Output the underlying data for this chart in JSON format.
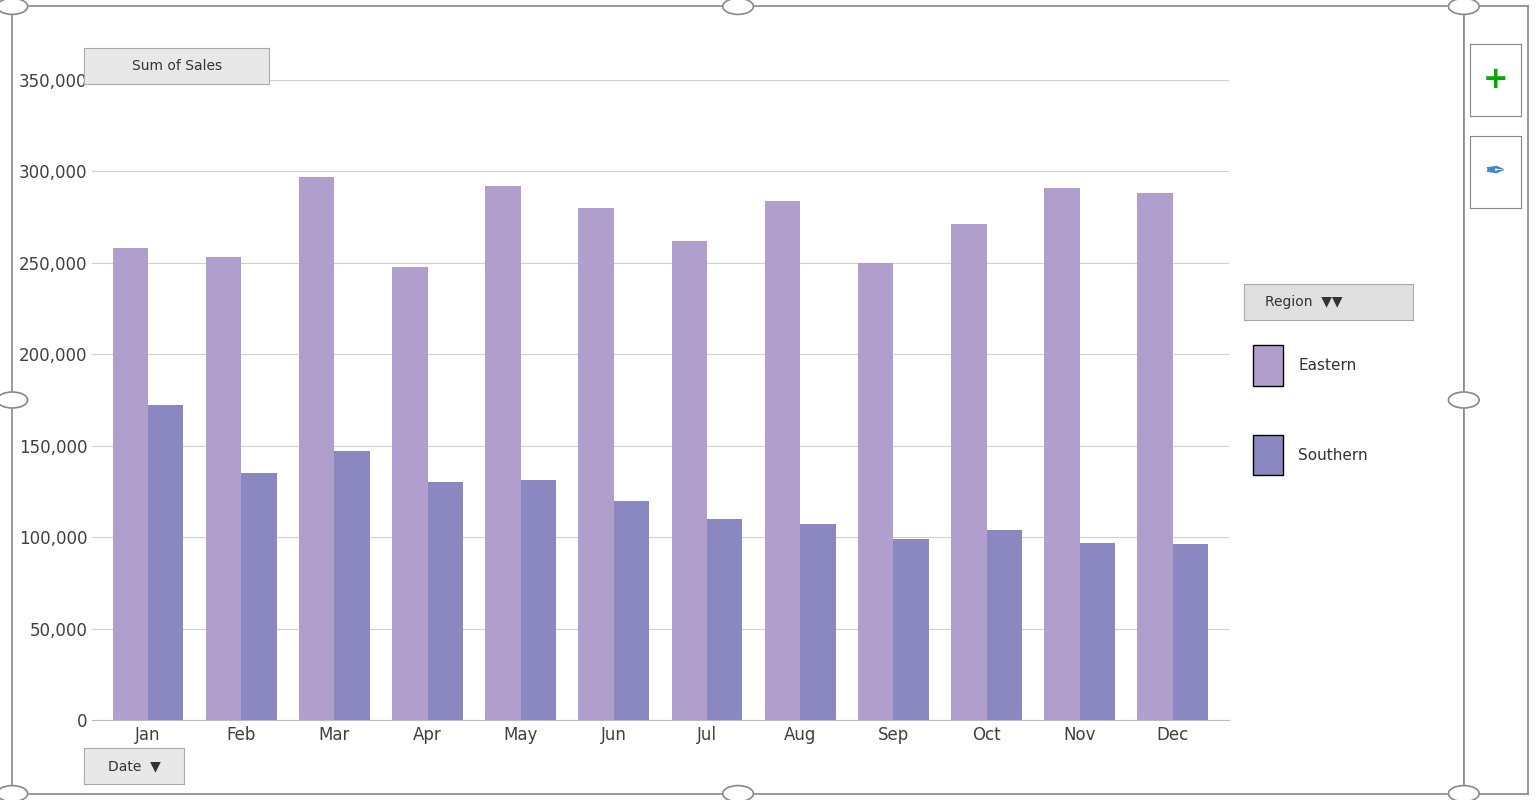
{
  "title": "Sum of Sales",
  "months": [
    "Jan",
    "Feb",
    "Mar",
    "Apr",
    "May",
    "Jun",
    "Jul",
    "Aug",
    "Sep",
    "Oct",
    "Nov",
    "Dec"
  ],
  "eastern": [
    258000,
    253000,
    297000,
    248000,
    292000,
    280000,
    262000,
    284000,
    250000,
    271000,
    291000,
    288000
  ],
  "southern": [
    172000,
    135000,
    147000,
    130000,
    131000,
    120000,
    110000,
    107000,
    99000,
    104000,
    97000,
    96000
  ],
  "eastern_color": "#b09fcc",
  "southern_color": "#8b87c0",
  "background_color": "#ffffff",
  "plot_bg": "#ffffff",
  "grid_color": "#d0d0d0",
  "border_color": "#888888",
  "ylim": [
    0,
    350000
  ],
  "yticks": [
    0,
    50000,
    100000,
    150000,
    200000,
    250000,
    300000,
    350000
  ],
  "legend_title": "Region",
  "legend_eastern": "Eastern",
  "legend_southern": "Southern",
  "date_label": "Date",
  "fig_width": 15.36,
  "fig_height": 8.0,
  "dpi": 100
}
